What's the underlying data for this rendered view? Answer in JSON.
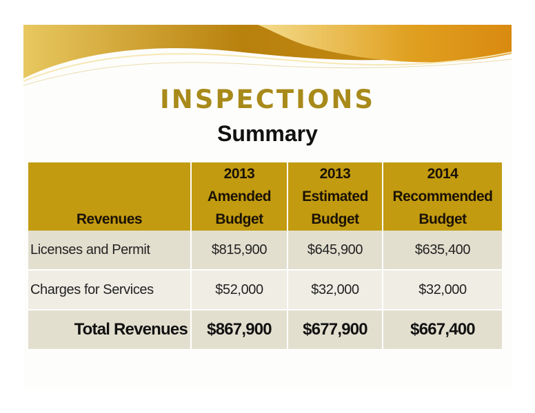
{
  "slide": {
    "title": "INSPECTIONS",
    "subtitle": "Summary"
  },
  "table": {
    "headers": {
      "revenues": "Revenues",
      "col1": "2013 Amended Budget",
      "col2": "2013 Estimated Budget",
      "col3": "2014 Recommended Budget"
    },
    "rows": [
      {
        "label": "Licenses and Permit",
        "v1": "$815,900",
        "v2": "$645,900",
        "v3": "$635,400"
      },
      {
        "label": "Charges for Services",
        "v1": "$52,000",
        "v2": "$32,000",
        "v3": "$32,000"
      }
    ],
    "total": {
      "label": "Total Revenues",
      "v1": "$867,900",
      "v2": "$677,900",
      "v3": "$667,400"
    }
  },
  "colors": {
    "header_gold": "#c29b10",
    "title_gold": "#a88a1a",
    "row_tan": "#e3dfcf",
    "row_light": "#efede4"
  }
}
